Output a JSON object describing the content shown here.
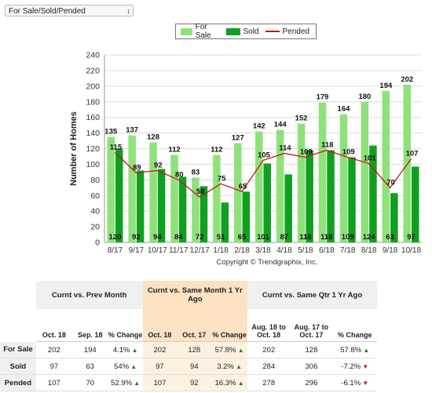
{
  "selector": {
    "value": "For Sale/Sold/Pended"
  },
  "legend": {
    "for_sale": "For Sale",
    "sold": "Sold",
    "pended": "Pended"
  },
  "colors": {
    "for_sale": "#8fe17a",
    "sold": "#10a020",
    "pended": "#c81414",
    "highlight": "#fbe2c3"
  },
  "chart_data": {
    "type": "bar",
    "categories": [
      "8/17",
      "9/17",
      "10/17",
      "11/17",
      "12/17",
      "1/18",
      "2/18",
      "3/18",
      "4/18",
      "5/18",
      "6/18",
      "7/18",
      "8/18",
      "9/18",
      "10/18"
    ],
    "series": [
      {
        "name": "For Sale",
        "type": "bar",
        "values": [
          135,
          137,
          128,
          112,
          83,
          112,
          127,
          142,
          144,
          152,
          179,
          164,
          180,
          194,
          202
        ]
      },
      {
        "name": "Sold",
        "type": "bar",
        "values": [
          120,
          92,
          94,
          84,
          72,
          51,
          65,
          101,
          87,
          118,
          118,
          109,
          124,
          63,
          97
        ]
      },
      {
        "name": "Pended",
        "type": "line",
        "values": [
          115,
          89,
          92,
          80,
          58,
          75,
          65,
          105,
          114,
          109,
          118,
          109,
          101,
          70,
          107
        ]
      }
    ],
    "ylabel": "Number of Homes",
    "xlabel": "",
    "ylim": [
      0,
      240
    ],
    "yticks": [
      0,
      20,
      40,
      60,
      80,
      100,
      120,
      140,
      160,
      180,
      200,
      220,
      240
    ],
    "grid": true,
    "legend_position": "top",
    "copyright": "Copyright © Trendgraphix, Inc."
  },
  "table": {
    "groups": [
      "Curnt vs. Prev Month",
      "Curnt vs. Same Month 1 Yr Ago",
      "Curnt vs. Same Qtr 1 Yr Ago"
    ],
    "columns": [
      "Oct. 18",
      "Sep. 18",
      "% Change",
      "Oct. 18",
      "Oct. 17",
      "% Change",
      "Aug. 18 to Oct. 18",
      "Aug. 17 to Oct. 17",
      "% Change"
    ],
    "rows": [
      {
        "label": "For Sale",
        "cells": [
          "202",
          "194",
          "4.1%",
          "202",
          "128",
          "57.8%",
          "202",
          "128",
          "57.8%"
        ],
        "dirs": [
          "up",
          "up",
          "up"
        ]
      },
      {
        "label": "Sold",
        "cells": [
          "97",
          "63",
          "54%",
          "97",
          "94",
          "3.2%",
          "284",
          "306",
          "-7.2%"
        ],
        "dirs": [
          "up",
          "up",
          "down"
        ]
      },
      {
        "label": "Pended",
        "cells": [
          "107",
          "70",
          "52.9%",
          "107",
          "92",
          "16.3%",
          "278",
          "296",
          "-6.1%"
        ],
        "dirs": [
          "up",
          "up",
          "down"
        ]
      }
    ]
  }
}
